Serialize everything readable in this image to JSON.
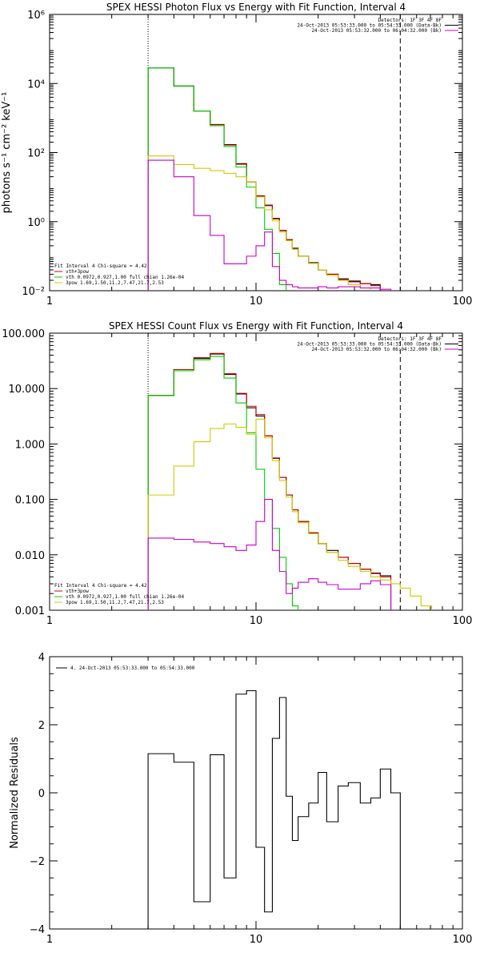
{
  "chart_data": [
    {
      "type": "line",
      "title": "SPEX HESSI Photon Flux vs Energy with Fit Function, Interval 4",
      "xlabel": "",
      "ylabel": "photons s⁻¹ cm⁻² keV⁻¹",
      "xscale": "log",
      "yscale": "log",
      "xlim": [
        1,
        100
      ],
      "ylim": [
        0.01,
        1000000
      ],
      "xticks": [
        {
          "v": 1,
          "label": "1"
        },
        {
          "v": 10,
          "label": "10"
        },
        {
          "v": 100,
          "label": "100"
        }
      ],
      "yticks": [
        {
          "v": 0.01,
          "label": "10⁻²"
        },
        {
          "v": 1,
          "label": "10⁰"
        },
        {
          "v": 100,
          "label": "10²"
        },
        {
          "v": 10000,
          "label": "10⁴"
        },
        {
          "v": 1000000,
          "label": "10⁶"
        }
      ],
      "vlines": [
        {
          "x": 3,
          "style": "dotted"
        },
        {
          "x": 50,
          "style": "dashed"
        }
      ],
      "legend_topright": [
        {
          "text": "Detectors: 1F 3F 4F 8F",
          "color": "#000000"
        },
        {
          "text": "24-Oct-2013 05:53:33.000 to 05:54:33.000 (Data-Bk)",
          "color": "#000000"
        },
        {
          "text": "24-Oct-2013 05:53:32.000 to 06:04:32.000 (Bk)",
          "color": "#cc00cc"
        }
      ],
      "legend_bottomleft": [
        {
          "text": "Fit Interval 4   Chi-square = 4.42",
          "color": "#000000"
        },
        {
          "text": "vth+3pow",
          "color": "#cc0000"
        },
        {
          "text": "vth 0.0972,0.927,1.00  full chian 1.26e-04",
          "color": "#00cc00"
        },
        {
          "text": "3pow 1.69,1.50,11.2,7.47,21.7,2.53",
          "color": "#cccc00"
        }
      ],
      "edges": [
        3,
        4,
        5,
        6,
        7,
        8,
        9,
        10,
        11,
        12,
        13,
        14,
        15,
        16,
        18,
        20,
        22,
        25,
        28,
        32,
        36,
        40,
        45,
        50,
        56,
        63
      ],
      "series": [
        {
          "name": "Data-Bk",
          "color": "#000000",
          "values": [
            28000,
            8500,
            1600,
            650,
            170,
            48,
            14,
            5.5,
            3.0,
            1.2,
            0.55,
            0.3,
            0.17,
            0.1,
            0.065,
            0.04,
            0.03,
            0.022,
            0.019,
            0.016,
            0.015,
            null,
            null,
            null,
            null
          ]
        },
        {
          "name": "vth+3pow",
          "color": "#cc0000",
          "values": [
            28000,
            8400,
            1600,
            640,
            165,
            46,
            14,
            5.6,
            2.9,
            1.25,
            0.56,
            0.3,
            0.16,
            0.1,
            0.062,
            0.04,
            0.03,
            0.021,
            0.018,
            0.016,
            0.014,
            null,
            null,
            null,
            null
          ]
        },
        {
          "name": "vth",
          "color": "#00cc00",
          "values": [
            28000,
            8400,
            1600,
            600,
            150,
            38,
            10,
            2.5,
            0.6,
            0.12,
            0.015,
            0.004,
            null,
            null,
            null,
            null,
            null,
            null,
            null,
            null,
            null,
            null,
            null,
            null,
            null
          ]
        },
        {
          "name": "3pow",
          "color": "#cccc00",
          "values": [
            80,
            45,
            35,
            30,
            25,
            20,
            14,
            5.2,
            2.2,
            1.05,
            0.5,
            0.28,
            0.16,
            0.1,
            0.062,
            0.04,
            0.028,
            0.02,
            0.015,
            0.012,
            0.01,
            0.009,
            0.008,
            0.007,
            null
          ]
        },
        {
          "name": "Bk",
          "color": "#cc00cc",
          "values": [
            60,
            20,
            1.5,
            0.4,
            0.06,
            0.06,
            0.1,
            0.2,
            0.5,
            0.05,
            0.02,
            0.015,
            0.013,
            0.012,
            0.012,
            0.013,
            0.012,
            0.013,
            0.013,
            0.012,
            0.012,
            0.011,
            null,
            null,
            null
          ]
        }
      ]
    },
    {
      "type": "line",
      "title": "SPEX HESSI Count Flux vs Energy with Fit Function, Interval 4",
      "xlabel": "",
      "ylabel": "",
      "xscale": "log",
      "yscale": "log",
      "xlim": [
        1,
        100
      ],
      "ylim": [
        0.001,
        100
      ],
      "xticks": [
        {
          "v": 1,
          "label": "1"
        },
        {
          "v": 10,
          "label": "10"
        },
        {
          "v": 100,
          "label": "100"
        }
      ],
      "yticks": [
        {
          "v": 0.001,
          "label": "0.001"
        },
        {
          "v": 0.01,
          "label": "0.010"
        },
        {
          "v": 0.1,
          "label": "0.100"
        },
        {
          "v": 1,
          "label": "1.000"
        },
        {
          "v": 10,
          "label": "10.000"
        },
        {
          "v": 100,
          "label": "100.000"
        }
      ],
      "vlines": [
        {
          "x": 3,
          "style": "dotted"
        },
        {
          "x": 50,
          "style": "dashed"
        }
      ],
      "legend_topright": [
        {
          "text": "Detectors: 1F 3F 4F 8F",
          "color": "#000000"
        },
        {
          "text": "24-Oct-2013 05:53:33.000 to 05:54:33.000 (Data-Bk)",
          "color": "#000000"
        },
        {
          "text": "24-Oct-2013 05:53:32.000 to 06:04:32.000 (Bk)",
          "color": "#cc00cc"
        }
      ],
      "legend_bottomleft": [
        {
          "text": "Fit Interval 4   Chi-square = 4.42",
          "color": "#000000"
        },
        {
          "text": "vth+3pow",
          "color": "#cc0000"
        },
        {
          "text": "vth 0.0972,0.927,1.00  full chian 1.26e-04",
          "color": "#00cc00"
        },
        {
          "text": "3pow 1.69,1.50,11.2,7.47,21.7,2.53",
          "color": "#cccc00"
        }
      ],
      "edges": [
        3,
        4,
        5,
        6,
        7,
        8,
        9,
        10,
        11,
        12,
        13,
        14,
        15,
        16,
        18,
        20,
        22,
        25,
        28,
        32,
        36,
        40,
        45,
        50,
        56,
        63,
        71,
        80
      ],
      "series": [
        {
          "name": "Data-Bk",
          "color": "#000000",
          "values": [
            7.5,
            22,
            35,
            42,
            18,
            8,
            4.5,
            3.2,
            1.4,
            0.55,
            0.25,
            0.12,
            0.065,
            0.04,
            0.025,
            0.016,
            0.012,
            0.009,
            0.007,
            0.0055,
            0.0047,
            0.0042,
            null,
            null,
            null,
            null,
            null
          ]
        },
        {
          "name": "vth+3pow",
          "color": "#cc0000",
          "values": [
            7.5,
            22,
            36,
            43,
            18.5,
            8.2,
            4.8,
            3.4,
            1.4,
            0.56,
            0.25,
            0.12,
            0.065,
            0.04,
            0.025,
            0.016,
            0.011,
            0.009,
            0.007,
            0.0055,
            0.0046,
            0.004,
            null,
            null,
            null,
            null,
            null
          ]
        },
        {
          "name": "vth",
          "color": "#00cc00",
          "values": [
            7.5,
            21,
            33,
            38,
            15.5,
            5.5,
            1.6,
            0.35,
            0.1,
            0.03,
            0.009,
            0.003,
            0.0012,
            null,
            null,
            null,
            null,
            null,
            null,
            null,
            null,
            null,
            null,
            null,
            null,
            null,
            null
          ]
        },
        {
          "name": "3pow",
          "color": "#cccc00",
          "values": [
            0.12,
            0.4,
            1.1,
            1.9,
            2.3,
            2.0,
            1.5,
            2.8,
            1.3,
            0.5,
            0.22,
            0.11,
            0.06,
            0.038,
            0.024,
            0.016,
            0.011,
            0.008,
            0.0062,
            0.005,
            0.004,
            0.0035,
            0.003,
            0.0025,
            0.0018,
            0.0012,
            0.0008
          ]
        },
        {
          "name": "Bk",
          "color": "#cc00cc",
          "values": [
            0.02,
            0.019,
            0.017,
            0.016,
            0.014,
            0.012,
            0.015,
            0.04,
            0.1,
            0.012,
            0.005,
            0.002,
            0.0025,
            0.0032,
            0.0037,
            0.0032,
            0.0029,
            0.0024,
            0.0024,
            0.003,
            0.0034,
            0.0029,
            null,
            null,
            null,
            null,
            null
          ]
        }
      ]
    },
    {
      "type": "line",
      "title": "",
      "xlabel": "",
      "ylabel": "Normalized Residuals",
      "xscale": "log",
      "yscale": "linear",
      "xlim": [
        1,
        100
      ],
      "ylim": [
        -4,
        4
      ],
      "xticks": [
        {
          "v": 1,
          "label": "1"
        },
        {
          "v": 10,
          "label": "10"
        },
        {
          "v": 100,
          "label": "100"
        }
      ],
      "yticks": [
        {
          "v": -4,
          "label": "−4"
        },
        {
          "v": -2,
          "label": "−2"
        },
        {
          "v": 0,
          "label": "0"
        },
        {
          "v": 2,
          "label": "2"
        },
        {
          "v": 4,
          "label": "4"
        }
      ],
      "vlines": [],
      "legend_topleft": [
        {
          "text": "4. 24-Oct-2013 05:53:33.000 to 05:54:33.000",
          "color": "#000000"
        }
      ],
      "edges": [
        3,
        4,
        5,
        6,
        7,
        8,
        9,
        10,
        11,
        12,
        13,
        14,
        15,
        16,
        18,
        20,
        22,
        25,
        28,
        32,
        36,
        40,
        45,
        50
      ],
      "series": [
        {
          "name": "residuals",
          "color": "#000000",
          "values": [
            1.15,
            0.9,
            -3.2,
            1.12,
            -2.5,
            2.9,
            3.0,
            -1.6,
            -3.5,
            1.6,
            2.8,
            -0.1,
            -1.4,
            -0.7,
            -0.3,
            0.6,
            -0.85,
            0.2,
            0.3,
            -0.3,
            -0.15,
            0.7,
            0.0
          ]
        }
      ],
      "drop_to_axis_at_ends": true
    }
  ]
}
